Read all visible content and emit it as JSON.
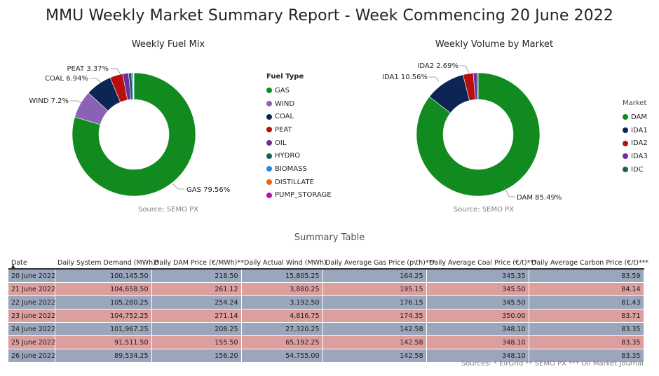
{
  "report": {
    "title": "MMU Weekly Market Summary Report - Week Commencing  20 June 2022"
  },
  "chart_data": [
    {
      "type": "pie",
      "title": "Weekly Fuel Mix",
      "source": "Source: SEMO PX",
      "legend_title": "Fuel Type",
      "legend_position": "right",
      "donut": true,
      "slices": [
        {
          "label": "GAS",
          "value": 79.56,
          "label_text": "GAS 79.56%",
          "color": "#118A1F"
        },
        {
          "label": "WIND",
          "value": 7.2,
          "label_text": "WIND 7.2%",
          "color": "#8B61B5"
        },
        {
          "label": "COAL",
          "value": 6.94,
          "label_text": "COAL 6.94%",
          "color": "#0C2555"
        },
        {
          "label": "PEAT",
          "value": 3.37,
          "label_text": "PEAT 3.37%",
          "color": "#B70E0E"
        },
        {
          "label": "OIL",
          "value": 1.55,
          "label_text": "",
          "color": "#6B2FA0"
        },
        {
          "label": "HYDRO",
          "value": 0.8,
          "label_text": "",
          "color": "#165F5B"
        },
        {
          "label": "BIOMASS",
          "value": 0.38,
          "label_text": "",
          "color": "#2B86D9"
        },
        {
          "label": "DISTILLATE",
          "value": 0.1,
          "label_text": "",
          "color": "#E8601C"
        },
        {
          "label": "PUMP_STORAGE",
          "value": 0.1,
          "label_text": "",
          "color": "#B511B0"
        }
      ]
    },
    {
      "type": "pie",
      "title": "Weekly Volume by Market",
      "source": "Source: SEMO PX",
      "legend_title": "Market",
      "legend_position": "right",
      "donut": true,
      "slices": [
        {
          "label": "DAM",
          "value": 85.49,
          "label_text": "DAM 85.49%",
          "color": "#118A1F"
        },
        {
          "label": "IDA1",
          "value": 10.56,
          "label_text": "IDA1 10.56%",
          "color": "#0C2555"
        },
        {
          "label": "IDA2",
          "value": 2.69,
          "label_text": "IDA2 2.69%",
          "color": "#B70E0E"
        },
        {
          "label": "IDA3",
          "value": 1.0,
          "label_text": "",
          "color": "#6B2FA0"
        },
        {
          "label": "IDC",
          "value": 0.26,
          "label_text": "",
          "color": "#165F5B"
        }
      ]
    },
    {
      "type": "table",
      "title": "Summary Table",
      "columns": [
        "Date",
        "Daily System Demand (MWh)*",
        "Daily DAM Price (€/MWh)**",
        "Daily Actual Wind (MWh)",
        "Daily Average Gas Price (p\\th)***",
        "Daily Average Coal Price (€/t)***",
        "Daily Average Carbon Price (€/t)***"
      ],
      "rows": [
        [
          "20 June 2022",
          "100,145.50",
          "218.50",
          "15,805.25",
          "164.25",
          "345.35",
          "83.59"
        ],
        [
          "21 June 2022",
          "104,658.50",
          "261.12",
          "3,880.25",
          "195.15",
          "345.50",
          "84.14"
        ],
        [
          "22 June 2022",
          "105,280.25",
          "254.24",
          "3,192.50",
          "176.15",
          "345.50",
          "81.43"
        ],
        [
          "23 June 2022",
          "104,752.25",
          "271.14",
          "4,816.75",
          "174.35",
          "350.00",
          "83.71"
        ],
        [
          "24 June 2022",
          "101,967.25",
          "208.25",
          "27,320.25",
          "142.58",
          "348.10",
          "83.35"
        ],
        [
          "25 June 2022",
          "91,511.50",
          "155.50",
          "65,192.25",
          "142.58",
          "348.10",
          "83.35"
        ],
        [
          "26 June 2022",
          "89,534.25",
          "156.20",
          "54,755.00",
          "142.58",
          "348.10",
          "83.35"
        ]
      ],
      "row_colors": [
        "#9AA6BC",
        "#DD9E9E"
      ],
      "sort_indicator": "▲",
      "footnote": "Sources: * EirGrid  ** SEMO PX *** Oil Market Journal"
    }
  ]
}
